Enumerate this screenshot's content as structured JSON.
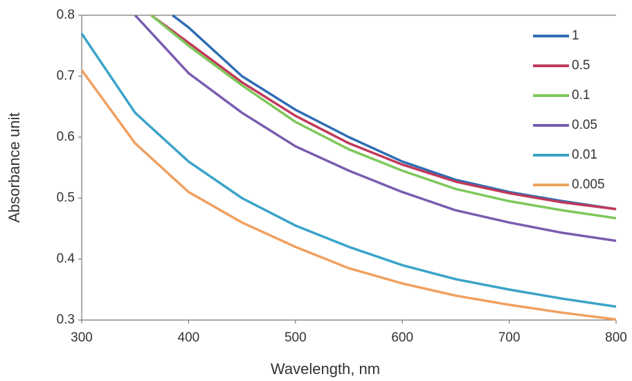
{
  "chart_data": {
    "type": "line",
    "x_label": "Wavelength, nm",
    "y_label": "Absorbance unit",
    "xlim": [
      300,
      800
    ],
    "xticks": [
      300,
      400,
      500,
      600,
      700,
      800
    ],
    "ylim": [
      0.3,
      0.8
    ],
    "yticks": [
      0.3,
      0.4,
      0.5,
      0.6,
      0.7,
      0.8
    ],
    "legend": "upper right",
    "series": [
      {
        "name": "1",
        "color": "#2e6db4",
        "x": [
          385,
          400,
          450,
          500,
          550,
          600,
          650,
          700,
          750,
          800
        ],
        "values": [
          0.8,
          0.78,
          0.7,
          0.645,
          0.6,
          0.56,
          0.53,
          0.51,
          0.495,
          0.482
        ]
      },
      {
        "name": "0.5",
        "color": "#c0395a",
        "x": [
          365,
          400,
          450,
          500,
          550,
          600,
          650,
          700,
          750,
          800
        ],
        "values": [
          0.8,
          0.755,
          0.69,
          0.635,
          0.59,
          0.555,
          0.527,
          0.508,
          0.493,
          0.482
        ]
      },
      {
        "name": "0.1",
        "color": "#7dc85a",
        "x": [
          365,
          400,
          450,
          500,
          550,
          600,
          650,
          700,
          750,
          800
        ],
        "values": [
          0.8,
          0.75,
          0.685,
          0.625,
          0.58,
          0.545,
          0.515,
          0.495,
          0.48,
          0.467
        ]
      },
      {
        "name": "0.05",
        "color": "#7a5cb0",
        "x": [
          350,
          400,
          450,
          500,
          550,
          600,
          650,
          700,
          750,
          800
        ],
        "values": [
          0.8,
          0.705,
          0.64,
          0.585,
          0.545,
          0.51,
          0.48,
          0.46,
          0.443,
          0.43
        ]
      },
      {
        "name": "0.01",
        "color": "#3aa3c8",
        "x": [
          300,
          350,
          400,
          450,
          500,
          550,
          600,
          650,
          700,
          750,
          800
        ],
        "values": [
          0.77,
          0.64,
          0.56,
          0.5,
          0.455,
          0.42,
          0.39,
          0.367,
          0.35,
          0.335,
          0.322
        ]
      },
      {
        "name": "0.005",
        "color": "#f0a060",
        "x": [
          300,
          350,
          400,
          450,
          500,
          550,
          600,
          650,
          700,
          750,
          800
        ],
        "values": [
          0.71,
          0.59,
          0.51,
          0.46,
          0.42,
          0.385,
          0.36,
          0.34,
          0.325,
          0.312,
          0.301
        ]
      }
    ]
  }
}
